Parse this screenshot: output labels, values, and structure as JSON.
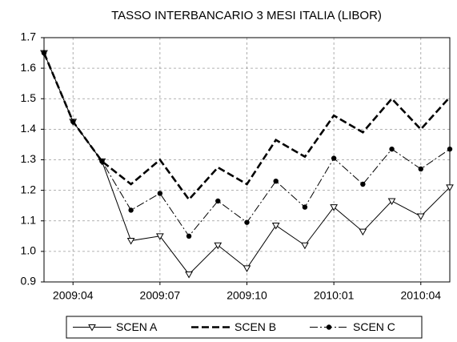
{
  "chart_data": {
    "type": "line",
    "title": "TASSO INTERBANCARIO 3 MESI ITALIA (LIBOR)",
    "categories": [
      null,
      "2009:04",
      null,
      null,
      "2009:07",
      null,
      null,
      "2009:10",
      null,
      null,
      "2010:01",
      null,
      null,
      "2010:04",
      null
    ],
    "series": [
      {
        "name": "SCEN A",
        "color": "#000000",
        "marker": "triangle-down",
        "dash": "solid",
        "values": [
          1.65,
          1.425,
          1.295,
          1.035,
          1.05,
          0.925,
          1.02,
          0.945,
          1.085,
          1.02,
          1.145,
          1.065,
          1.165,
          1.115,
          1.21
        ]
      },
      {
        "name": "SCEN B",
        "color": "#000000",
        "marker": "none",
        "dash": "dashed",
        "values": [
          1.65,
          1.425,
          1.295,
          1.22,
          1.3,
          1.17,
          1.275,
          1.22,
          1.365,
          1.31,
          1.445,
          1.39,
          1.5,
          1.4,
          1.505
        ]
      },
      {
        "name": "SCEN C",
        "color": "#000000",
        "marker": "circle",
        "dash": "dashdot",
        "values": [
          1.65,
          1.425,
          1.295,
          1.135,
          1.19,
          1.05,
          1.165,
          1.095,
          1.23,
          1.145,
          1.305,
          1.22,
          1.335,
          1.27,
          1.335
        ]
      }
    ],
    "ylim": [
      0.9,
      1.7
    ],
    "yticks": [
      0.9,
      {
        "value": 1,
        "label": "1.0"
      },
      1.1,
      1.2,
      1.3,
      1.4,
      1.5,
      1.6,
      1.7
    ],
    "grid": true,
    "legend": "bottom"
  }
}
